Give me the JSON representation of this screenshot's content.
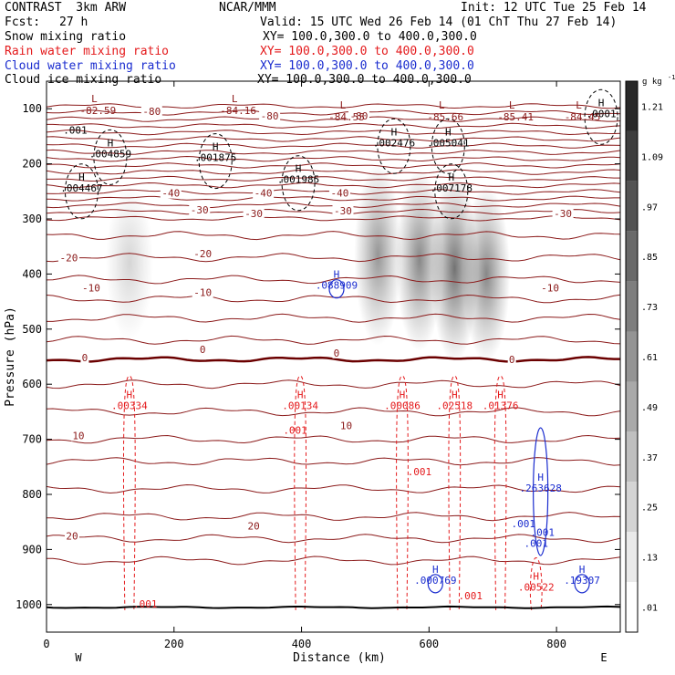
{
  "header": {
    "model": "CONTRAST  3km ARW",
    "org": "NCAR/MMM",
    "init": "Init: 12 UTC Tue 25 Feb 14",
    "fcst_label": "Fcst:",
    "fcst_value": "27 h",
    "valid": "Valid: 15 UTC Wed 26 Feb 14 (01 ChT Thu 27 Feb 14)"
  },
  "fields": [
    {
      "name": "Snow mixing ratio",
      "xy": "XY= 100.0,300.0 to 400.0,300.0",
      "color": "#000000"
    },
    {
      "name": "Rain water mixing ratio",
      "xy": "XY= 100.0,300.0 to 400.0,300.0",
      "color": "#e41a1c"
    },
    {
      "name": "Cloud water mixing ratio",
      "xy": "XY= 100.0,300.0 to 400.0,300.0",
      "color": "#1a2ccf"
    },
    {
      "name": "Cloud ice mixing ratio",
      "xy": "XY= 100.0,300.0 to 400.0,300.0",
      "color": "#000000"
    }
  ],
  "colors": {
    "temperature": "#8b1a1a",
    "freezing_line": "#6b0000",
    "rain": "#e41a1c",
    "cloud_water": "#1a2ccf",
    "snow_ice": "#000000"
  },
  "chart_data": {
    "type": "heatmap",
    "xlabel": "Distance (km)",
    "ylabel": "Pressure (hPa)",
    "xlim": [
      0,
      900
    ],
    "ylim": [
      1050,
      50
    ],
    "y_scale": "pressure",
    "x_ticks": [
      0,
      200,
      400,
      600,
      800
    ],
    "y_ticks": [
      100,
      200,
      300,
      400,
      500,
      600,
      700,
      800,
      900,
      1000
    ],
    "x_end_labels": {
      "left": "W",
      "right": "E"
    },
    "colorbar": {
      "unit": "g kg",
      "unit_exp": "-1",
      "ticks": [
        "1.21",
        "1.09",
        ".97",
        ".85",
        ".73",
        ".61",
        ".49",
        ".37",
        ".25",
        ".13",
        ".01"
      ]
    },
    "temperature_isotherms": [
      {
        "label": "-80",
        "p": 120
      },
      {
        "label": "-40",
        "p": 250
      },
      {
        "label": "-30",
        "p": 290
      },
      {
        "label": "-20",
        "p": 370
      },
      {
        "label": "-10",
        "p": 445
      },
      {
        "label": "0",
        "p": 555
      },
      {
        "label": "10",
        "p": 700
      },
      {
        "label": "20",
        "p": 880
      }
    ],
    "temperature_labels": [
      {
        "text": "-80",
        "x": 165,
        "p": 110
      },
      {
        "text": "-80",
        "x": 350,
        "p": 118
      },
      {
        "text": "-80",
        "x": 490,
        "p": 118
      },
      {
        "text": "-40",
        "x": 195,
        "p": 258
      },
      {
        "text": "-40",
        "x": 340,
        "p": 258
      },
      {
        "text": "-40",
        "x": 460,
        "p": 258
      },
      {
        "text": "-30",
        "x": 240,
        "p": 288
      },
      {
        "text": "-30",
        "x": 325,
        "p": 295
      },
      {
        "text": "-30",
        "x": 465,
        "p": 290
      },
      {
        "text": "-30",
        "x": 810,
        "p": 295
      },
      {
        "text": "-20",
        "x": 245,
        "p": 368
      },
      {
        "text": "-20",
        "x": 35,
        "p": 375
      },
      {
        "text": "-10",
        "x": 70,
        "p": 430
      },
      {
        "text": "-10",
        "x": 245,
        "p": 438
      },
      {
        "text": "-10",
        "x": 790,
        "p": 430
      },
      {
        "text": "0",
        "x": 60,
        "p": 557
      },
      {
        "text": "0",
        "x": 245,
        "p": 542
      },
      {
        "text": "0",
        "x": 455,
        "p": 548
      },
      {
        "text": "0",
        "x": 730,
        "p": 560
      },
      {
        "text": "10",
        "x": 50,
        "p": 698
      },
      {
        "text": "10",
        "x": 470,
        "p": 680
      },
      {
        "text": "20",
        "x": 40,
        "p": 880
      },
      {
        "text": "20",
        "x": 325,
        "p": 862
      }
    ],
    "tropopause_minima": [
      {
        "value": "-82.59",
        "x": 75,
        "p": 88
      },
      {
        "value": "-84.16",
        "x": 295,
        "p": 88
      },
      {
        "value": "-84.55",
        "x": 465,
        "p": 100
      },
      {
        "value": "-85.66",
        "x": 620,
        "p": 100
      },
      {
        "value": "-85.41",
        "x": 730,
        "p": 100
      },
      {
        "value": "-84.45",
        "x": 835,
        "p": 100
      }
    ],
    "snow_maxima": [
      {
        "value": ".004859",
        "x": 100,
        "p": 188
      },
      {
        "value": ".004467",
        "x": 55,
        "p": 250
      },
      {
        "value": ".001875",
        "x": 265,
        "p": 195
      },
      {
        "value": ".001985",
        "x": 395,
        "p": 235
      },
      {
        "value": ".002476",
        "x": 545,
        "p": 168
      },
      {
        "value": ".005041",
        "x": 630,
        "p": 168
      },
      {
        "value": ".007178",
        "x": 635,
        "p": 250
      },
      {
        "value": ".0001",
        "x": 870,
        "p": 115
      }
    ],
    "snow_contour_label": ".001",
    "rain_maxima": [
      {
        "value": ".00334",
        "x": 130,
        "p": 645
      },
      {
        "value": ".00134",
        "x": 398,
        "p": 645
      },
      {
        "value": ".00086",
        "x": 558,
        "p": 645
      },
      {
        "value": ".02518",
        "x": 640,
        "p": 645
      },
      {
        "value": ".01376",
        "x": 712,
        "p": 645
      },
      {
        "value": ".00522",
        "x": 768,
        "p": 975
      }
    ],
    "rain_contour_labels": [
      {
        "text": ".001",
        "x": 390,
        "p": 690
      },
      {
        "text": ".001",
        "x": 585,
        "p": 765
      },
      {
        "text": ".001",
        "x": 665,
        "p": 990
      },
      {
        "text": ".001",
        "x": 155,
        "p": 1005
      }
    ],
    "cloud_water_maxima": [
      {
        "value": ".088909",
        "x": 455,
        "p": 427
      },
      {
        "value": ".263628",
        "x": 775,
        "p": 795
      },
      {
        "value": ".000769",
        "x": 610,
        "p": 962
      },
      {
        "value": ".19307",
        "x": 840,
        "p": 962
      }
    ],
    "cloud_water_contour_labels": [
      {
        "text": ".001",
        "x": 748,
        "p": 860
      },
      {
        "text": ".001",
        "x": 768,
        "p": 895
      },
      {
        "text": ".001",
        "x": 778,
        "p": 875
      }
    ],
    "cloud_ice_shading": [
      {
        "x": 130,
        "p_top": 240,
        "p_bot": 520,
        "peak": 0.3
      },
      {
        "x": 520,
        "p_top": 200,
        "p_bot": 530,
        "peak": 0.75
      },
      {
        "x": 585,
        "p_top": 210,
        "p_bot": 540,
        "peak": 0.85
      },
      {
        "x": 640,
        "p_top": 220,
        "p_bot": 560,
        "peak": 1.0
      },
      {
        "x": 690,
        "p_top": 240,
        "p_bot": 560,
        "peak": 0.85
      }
    ]
  }
}
